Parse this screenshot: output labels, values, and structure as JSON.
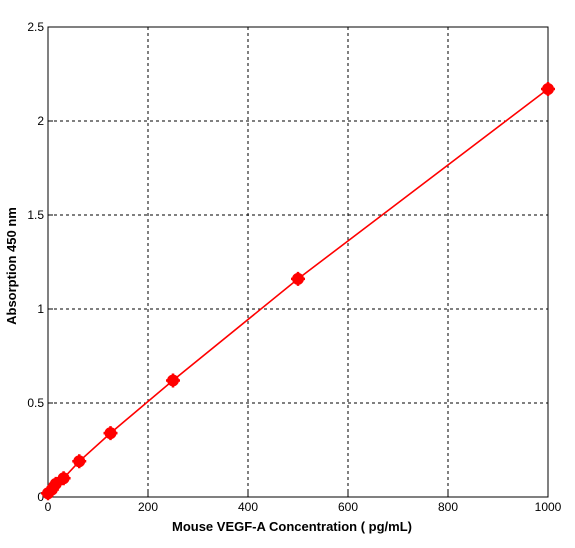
{
  "chart_data": {
    "type": "line",
    "title": "",
    "xlabel": "Mouse VEGF-A Concentration ( pg/mL)",
    "ylabel": "Absorption 450 nm",
    "xlim": [
      0,
      1000
    ],
    "ylim": [
      0,
      2.5
    ],
    "grid": true,
    "legend": "none",
    "x_ticks": [
      {
        "value": 0,
        "label": "0"
      },
      {
        "value": 200,
        "label": "200"
      },
      {
        "value": 400,
        "label": "400"
      },
      {
        "value": 600,
        "label": "600"
      },
      {
        "value": 800,
        "label": "800"
      },
      {
        "value": 1000,
        "label": "1000"
      }
    ],
    "y_ticks": [
      {
        "value": 0,
        "label": "0"
      },
      {
        "value": 0.5,
        "label": "0.5"
      },
      {
        "value": 1,
        "label": "1"
      },
      {
        "value": 1.5,
        "label": "1.5"
      },
      {
        "value": 2,
        "label": "2"
      },
      {
        "value": 2.5,
        "label": "2.5"
      }
    ],
    "series": [
      {
        "color": "#ff0000",
        "marker": "filled-circle",
        "points": [
          {
            "x": 0,
            "y": 0.02
          },
          {
            "x": 7.8,
            "y": 0.04
          },
          {
            "x": 15.6,
            "y": 0.07
          },
          {
            "x": 31.2,
            "y": 0.1
          },
          {
            "x": 62.5,
            "y": 0.19
          },
          {
            "x": 125,
            "y": 0.34
          },
          {
            "x": 250,
            "y": 0.62
          },
          {
            "x": 500,
            "y": 1.16
          },
          {
            "x": 1000,
            "y": 2.17
          }
        ]
      }
    ]
  }
}
